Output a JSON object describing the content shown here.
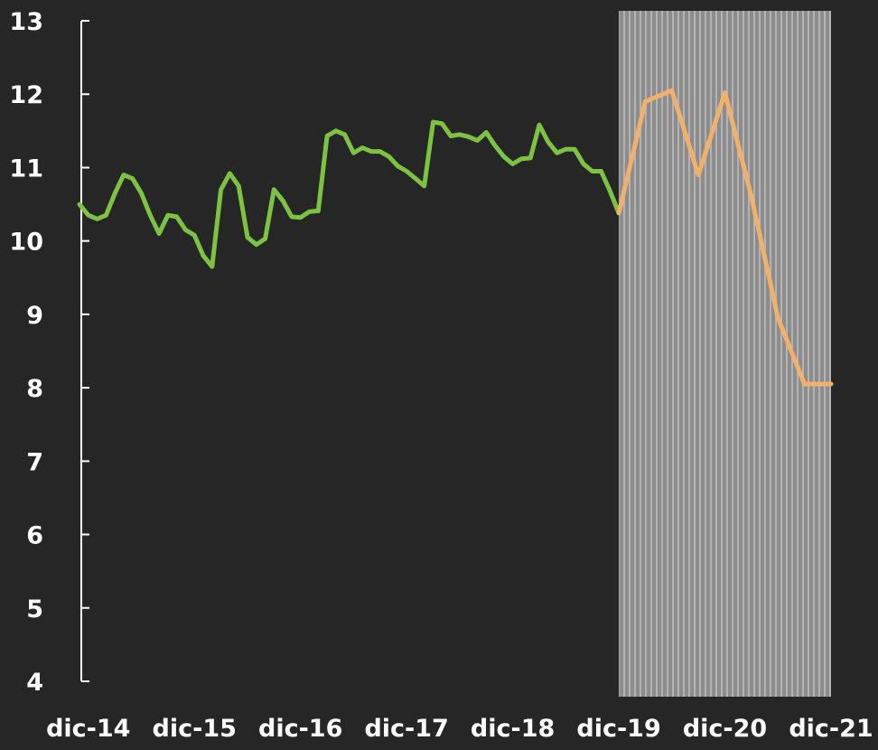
{
  "colors": {
    "background": "#262626",
    "axis": "#ffffff",
    "series_historical": "#7dc242",
    "series_forecast": "#f2b16b",
    "shade_fill": "#8c8c8c",
    "shade_stripe": "#b4b4b4"
  },
  "chart_data": {
    "type": "line",
    "title": "",
    "xlabel": "",
    "ylabel": "",
    "ylim": [
      4,
      13
    ],
    "y_ticks": [
      "4",
      "5",
      "6",
      "7",
      "8",
      "9",
      "10",
      "11",
      "12",
      "13"
    ],
    "x_tick_labels": [
      "dic-14",
      "dic-15",
      "dic-16",
      "dic-17",
      "dic-18",
      "dic-19",
      "dic-20",
      "dic-21"
    ],
    "grid": false,
    "legend": "none",
    "shaded_region": {
      "from": "dic-19",
      "to": "dic-21",
      "pattern": "vertical stripes"
    },
    "series": [
      {
        "style": "solid green line",
        "x": [
          "nov-14",
          "dic-14",
          "ene-15",
          "feb-15",
          "mar-15",
          "abr-15",
          "may-15",
          "jun-15",
          "jul-15",
          "ago-15",
          "sep-15",
          "oct-15",
          "nov-15",
          "dic-15",
          "ene-16",
          "feb-16",
          "mar-16",
          "abr-16",
          "may-16",
          "jun-16",
          "jul-16",
          "ago-16",
          "sep-16",
          "oct-16",
          "nov-16",
          "dic-16",
          "ene-17",
          "feb-17",
          "mar-17",
          "abr-17",
          "may-17",
          "jun-17",
          "jul-17",
          "ago-17",
          "sep-17",
          "oct-17",
          "nov-17",
          "dic-17",
          "ene-18",
          "feb-18",
          "mar-18",
          "abr-18",
          "may-18",
          "jun-18",
          "jul-18",
          "ago-18",
          "sep-18",
          "oct-18",
          "nov-18",
          "dic-18",
          "ene-19",
          "feb-19",
          "mar-19",
          "abr-19",
          "may-19",
          "jun-19",
          "jul-19",
          "ago-19",
          "sep-19",
          "oct-19",
          "nov-19",
          "dic-19"
        ],
        "y": [
          10.5,
          10.35,
          10.3,
          10.35,
          10.65,
          10.9,
          10.85,
          10.65,
          10.35,
          10.1,
          10.35,
          10.33,
          10.15,
          10.08,
          9.8,
          9.65,
          10.7,
          10.92,
          10.75,
          10.05,
          9.95,
          10.03,
          10.7,
          10.55,
          10.33,
          10.32,
          10.4,
          10.41,
          11.43,
          11.5,
          11.45,
          11.2,
          11.27,
          11.22,
          11.22,
          11.15,
          11.02,
          10.95,
          10.85,
          10.75,
          11.62,
          11.6,
          11.43,
          11.45,
          11.42,
          11.37,
          11.48,
          11.3,
          11.15,
          11.05,
          11.12,
          11.13,
          11.58,
          11.35,
          11.2,
          11.25,
          11.25,
          11.05,
          10.95,
          10.95,
          10.68,
          10.38
        ],
        "values_note": "monthly values read off the chart"
      },
      {
        "style": "solid orange line",
        "x": [
          "dic-19",
          "mar-20",
          "jun-20",
          "sep-20",
          "dic-20",
          "mar-21",
          "jun-21",
          "sep-21",
          "dic-21"
        ],
        "y": [
          10.38,
          11.9,
          12.05,
          10.9,
          12.02,
          10.6,
          8.95,
          8.05,
          8.05
        ],
        "values_note": "quarterly values read off the chart"
      }
    ]
  }
}
